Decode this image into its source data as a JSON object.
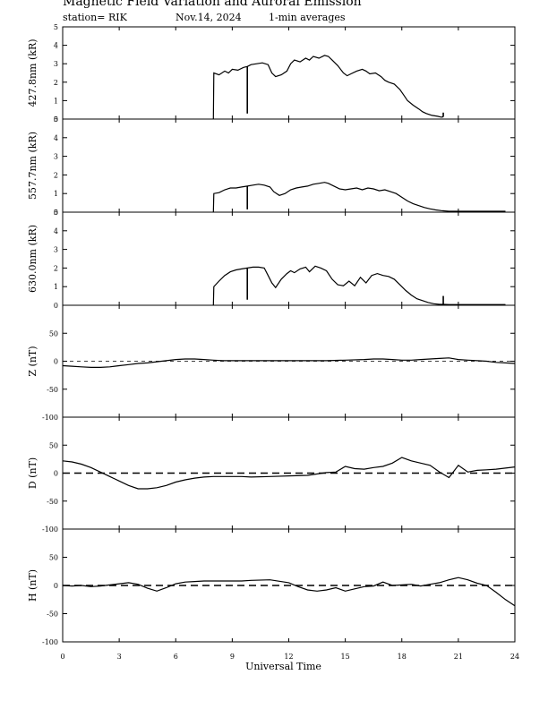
{
  "header": {
    "title": "Magnetic Field Variation and Auroral Emission",
    "station": "station= RIK",
    "date": "Nov.14, 2024",
    "averaging": "1-min averages"
  },
  "chart_data": {
    "type": "line",
    "x_range": [
      0,
      24
    ],
    "x_ticks": [
      0,
      3,
      6,
      9,
      12,
      15,
      18,
      21,
      24
    ],
    "xlabel": "Universal Time",
    "panels": [
      {
        "ylabel": "427.8nm (kR)",
        "ylim": [
          0,
          5
        ],
        "yticks": [
          0,
          1,
          2,
          3,
          4,
          5
        ],
        "zero_line": false,
        "x": [
          8.0,
          8.02,
          8.3,
          8.6,
          8.8,
          9.0,
          9.3,
          9.6,
          9.8,
          10.0,
          10.3,
          10.6,
          10.9,
          11.1,
          11.3,
          11.6,
          11.9,
          12.1,
          12.3,
          12.6,
          12.9,
          13.1,
          13.3,
          13.6,
          13.9,
          14.1,
          14.3,
          14.6,
          14.9,
          15.1,
          15.3,
          15.6,
          15.9,
          16.1,
          16.3,
          16.6,
          16.9,
          17.1,
          17.3,
          17.6,
          17.9,
          18.1,
          18.3,
          18.6,
          18.9,
          19.1,
          19.3,
          19.6,
          19.9,
          20.1,
          20.2
        ],
        "y": [
          0,
          2.5,
          2.4,
          2.6,
          2.5,
          2.7,
          2.65,
          2.8,
          2.85,
          2.95,
          3.0,
          3.05,
          2.95,
          2.5,
          2.3,
          2.4,
          2.6,
          3.0,
          3.2,
          3.1,
          3.3,
          3.2,
          3.4,
          3.3,
          3.45,
          3.4,
          3.2,
          2.9,
          2.5,
          2.35,
          2.45,
          2.6,
          2.7,
          2.6,
          2.45,
          2.5,
          2.3,
          2.1,
          2.0,
          1.9,
          1.6,
          1.3,
          1.0,
          0.75,
          0.55,
          0.4,
          0.3,
          0.2,
          0.15,
          0.1,
          0.12
        ],
        "spikes": [
          {
            "x": 9.8,
            "y": 0.3
          },
          {
            "x": 20.2,
            "y": 0.35
          }
        ]
      },
      {
        "ylabel": "557.7nm (kR)",
        "ylim": [
          0,
          5
        ],
        "yticks": [
          0,
          1,
          2,
          3,
          4,
          5
        ],
        "zero_line": false,
        "x": [
          8.0,
          8.02,
          8.3,
          8.6,
          8.9,
          9.2,
          9.5,
          9.8,
          10.1,
          10.4,
          10.7,
          11.0,
          11.2,
          11.5,
          11.8,
          12.1,
          12.4,
          12.7,
          13.0,
          13.3,
          13.6,
          13.9,
          14.1,
          14.4,
          14.7,
          15.0,
          15.3,
          15.6,
          15.9,
          16.2,
          16.5,
          16.8,
          17.1,
          17.4,
          17.7,
          18.0,
          18.3,
          18.6,
          18.9,
          19.2,
          19.5,
          19.8,
          20.1,
          20.2,
          20.5,
          22.0,
          23.5
        ],
        "y": [
          0,
          1.0,
          1.05,
          1.2,
          1.3,
          1.3,
          1.35,
          1.4,
          1.45,
          1.5,
          1.45,
          1.35,
          1.1,
          0.9,
          1.0,
          1.2,
          1.3,
          1.35,
          1.4,
          1.5,
          1.55,
          1.6,
          1.55,
          1.4,
          1.25,
          1.2,
          1.25,
          1.3,
          1.2,
          1.3,
          1.25,
          1.15,
          1.2,
          1.1,
          1.0,
          0.8,
          0.6,
          0.45,
          0.35,
          0.25,
          0.18,
          0.12,
          0.08,
          0.07,
          0.05,
          0.05,
          0.05
        ],
        "spikes": [
          {
            "x": 9.8,
            "y": 0.15
          },
          {
            "x": 20.2,
            "y": 0.1
          }
        ]
      },
      {
        "ylabel": "630.0nm (kR)",
        "ylim": [
          0,
          5
        ],
        "yticks": [
          0,
          1,
          2,
          3,
          4,
          5
        ],
        "zero_line": false,
        "x": [
          8.0,
          8.02,
          8.3,
          8.6,
          8.9,
          9.2,
          9.5,
          9.8,
          10.1,
          10.4,
          10.7,
          10.9,
          11.1,
          11.3,
          11.6,
          11.9,
          12.1,
          12.3,
          12.6,
          12.9,
          13.1,
          13.4,
          13.7,
          14.0,
          14.3,
          14.6,
          14.9,
          15.2,
          15.5,
          15.8,
          16.1,
          16.4,
          16.7,
          17.0,
          17.3,
          17.6,
          17.9,
          18.2,
          18.5,
          18.8,
          19.1,
          19.4,
          19.7,
          20.0,
          20.2,
          20.5,
          22.0,
          23.5
        ],
        "y": [
          0,
          1.0,
          1.3,
          1.6,
          1.8,
          1.9,
          1.95,
          2.0,
          2.05,
          2.05,
          2.0,
          1.6,
          1.2,
          0.95,
          1.4,
          1.7,
          1.85,
          1.75,
          1.95,
          2.05,
          1.8,
          2.1,
          2.0,
          1.85,
          1.4,
          1.1,
          1.05,
          1.3,
          1.05,
          1.5,
          1.2,
          1.6,
          1.7,
          1.6,
          1.55,
          1.4,
          1.1,
          0.8,
          0.55,
          0.35,
          0.25,
          0.15,
          0.08,
          0.05,
          0.05,
          0.04,
          0.04,
          0.04
        ],
        "spikes": [
          {
            "x": 9.8,
            "y": 0.3
          },
          {
            "x": 20.2,
            "y": 0.5
          }
        ]
      },
      {
        "ylabel": "Z (nT)",
        "ylim": [
          -100,
          100
        ],
        "yticks": [
          -100,
          -50,
          0,
          50
        ],
        "zero_line": true,
        "zero_line_style": "thin-dashed",
        "x": [
          0,
          0.5,
          1,
          1.5,
          2,
          2.5,
          3,
          3.5,
          4,
          4.5,
          5,
          5.5,
          6,
          6.5,
          7,
          7.5,
          8,
          8.5,
          9,
          9.5,
          10,
          11,
          12,
          13,
          14,
          15,
          16,
          16.5,
          17,
          17.5,
          18,
          18.5,
          19,
          19.5,
          20,
          20.5,
          21,
          21.5,
          22,
          22.5,
          23,
          23.5,
          24
        ],
        "y": [
          -8,
          -9,
          -10,
          -11,
          -11,
          -10,
          -8,
          -6,
          -4,
          -3,
          -1,
          1,
          3,
          4,
          4,
          3,
          2,
          1,
          1,
          1,
          1,
          1,
          1,
          1,
          1,
          2,
          3,
          4,
          4,
          3,
          2,
          2,
          3,
          4,
          5,
          6,
          3,
          2,
          1,
          0,
          -2,
          -3,
          -4
        ]
      },
      {
        "ylabel": "D (nT)",
        "ylim": [
          -100,
          100
        ],
        "yticks": [
          -100,
          -50,
          0,
          50
        ],
        "zero_line": true,
        "zero_line_style": "thick-dashed",
        "x": [
          0,
          0.5,
          1,
          1.5,
          2,
          2.5,
          3,
          3.5,
          4,
          4.5,
          5,
          5.5,
          6,
          6.5,
          7,
          7.5,
          8,
          8.5,
          9,
          9.5,
          10,
          11,
          12,
          13,
          14,
          14.5,
          15,
          15.5,
          16,
          16.5,
          17,
          17.5,
          18,
          18.5,
          19,
          19.5,
          20,
          20.5,
          21,
          21.5,
          22,
          22.5,
          23,
          23.5,
          24
        ],
        "y": [
          22,
          20,
          16,
          10,
          2,
          -6,
          -14,
          -22,
          -28,
          -28,
          -26,
          -22,
          -16,
          -12,
          -9,
          -7,
          -6,
          -6,
          -6,
          -6,
          -7,
          -6,
          -5,
          -4,
          1,
          2,
          12,
          8,
          7,
          10,
          12,
          18,
          28,
          22,
          18,
          14,
          2,
          -8,
          14,
          2,
          5,
          6,
          7,
          9,
          11
        ]
      },
      {
        "ylabel": "H (nT)",
        "ylim": [
          -100,
          100
        ],
        "yticks": [
          -100,
          -50,
          0,
          50
        ],
        "zero_line": true,
        "zero_line_style": "thick-dashed",
        "x": [
          0,
          0.5,
          1,
          1.5,
          2,
          2.5,
          3,
          3.5,
          4,
          4.5,
          5,
          5.5,
          6,
          6.5,
          7,
          7.5,
          8,
          8.5,
          9,
          9.5,
          10,
          11,
          12,
          12.5,
          13,
          13.5,
          14,
          14.5,
          15,
          15.5,
          16,
          16.5,
          17,
          17.5,
          18,
          18.5,
          19,
          19.5,
          20,
          20.5,
          21,
          21.5,
          22,
          22.5,
          23,
          23.5,
          24
        ],
        "y": [
          0,
          -1,
          0,
          -2,
          -1,
          1,
          3,
          5,
          2,
          -5,
          -10,
          -4,
          3,
          6,
          7,
          8,
          8,
          8,
          8,
          8,
          9,
          10,
          5,
          -2,
          -8,
          -10,
          -8,
          -4,
          -10,
          -6,
          -2,
          -1,
          6,
          0,
          1,
          2,
          -1,
          2,
          5,
          10,
          14,
          10,
          4,
          0,
          -12,
          -25,
          -36
        ]
      }
    ]
  }
}
